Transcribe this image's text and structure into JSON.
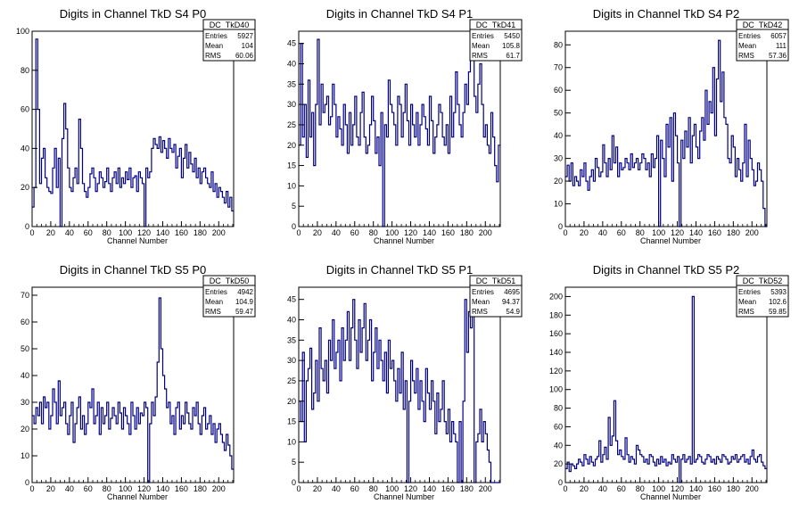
{
  "canvas": {
    "background": "#ffffff",
    "line_color": "#000080"
  },
  "chart_data": [
    {
      "type": "histogram",
      "title": "Digits in Channel TkD S4 P0",
      "xlabel": "Channel Number",
      "ylabel": "",
      "xlim": [
        0,
        216
      ],
      "ylim": [
        0,
        100
      ],
      "xticks": [
        0,
        20,
        40,
        60,
        80,
        100,
        120,
        140,
        160,
        180,
        200
      ],
      "yticks": [
        0,
        20,
        40,
        60,
        80,
        100
      ],
      "stats": {
        "name": "DC_TkD40",
        "entries": "5927",
        "mean": "104",
        "rms": "60.06"
      },
      "bin_width": 2,
      "values": [
        10,
        20,
        96,
        60,
        22,
        35,
        40,
        25,
        20,
        18,
        17,
        30,
        40,
        20,
        35,
        0,
        45,
        63,
        50,
        30,
        20,
        18,
        25,
        30,
        22,
        55,
        40,
        22,
        18,
        15,
        20,
        27,
        30,
        25,
        18,
        22,
        28,
        25,
        20,
        23,
        30,
        22,
        18,
        25,
        28,
        22,
        30,
        20,
        25,
        22,
        28,
        24,
        30,
        20,
        25,
        26,
        18,
        28,
        25,
        22,
        0,
        30,
        25,
        28,
        40,
        45,
        42,
        40,
        46,
        38,
        44,
        40,
        35,
        45,
        40,
        38,
        42,
        30,
        36,
        40,
        25,
        35,
        42,
        30,
        38,
        32,
        28,
        35,
        25,
        30,
        22,
        28,
        30,
        25,
        22,
        20,
        28,
        18,
        22,
        15,
        20,
        18,
        15,
        12,
        18,
        10,
        15,
        8
      ]
    },
    {
      "type": "histogram",
      "title": "Digits in Channel TkD S4 P1",
      "xlabel": "Channel Number",
      "ylabel": "",
      "xlim": [
        0,
        216
      ],
      "ylim": [
        0,
        48
      ],
      "xticks": [
        0,
        20,
        40,
        60,
        80,
        100,
        120,
        140,
        160,
        180,
        200
      ],
      "yticks": [
        0,
        5,
        10,
        15,
        20,
        25,
        30,
        35,
        40,
        45
      ],
      "stats": {
        "name": "DC_TkD41",
        "entries": "5450",
        "mean": "105.8",
        "rms": "61.7"
      },
      "bin_width": 2,
      "values": [
        20,
        45,
        22,
        30,
        17,
        36,
        22,
        28,
        15,
        30,
        46,
        25,
        35,
        28,
        30,
        32,
        25,
        27,
        35,
        30,
        22,
        27,
        24,
        20,
        30,
        25,
        18,
        28,
        20,
        25,
        32,
        22,
        20,
        28,
        33,
        22,
        18,
        20,
        25,
        32,
        26,
        18,
        22,
        15,
        28,
        0,
        25,
        22,
        36,
        30,
        28,
        25,
        20,
        32,
        30,
        22,
        28,
        35,
        26,
        20,
        30,
        25,
        22,
        28,
        20,
        25,
        30,
        27,
        24,
        20,
        32,
        26,
        18,
        22,
        25,
        30,
        28,
        22,
        20,
        25,
        18,
        32,
        22,
        28,
        38,
        30,
        25,
        22,
        28,
        35,
        30,
        38,
        42,
        46,
        32,
        28,
        35,
        40,
        30,
        22,
        25,
        20,
        18,
        28,
        22,
        15,
        11,
        20
      ]
    },
    {
      "type": "histogram",
      "title": "Digits in Channel TkD S4 P2",
      "xlabel": "Channel Number",
      "ylabel": "",
      "xlim": [
        0,
        216
      ],
      "ylim": [
        0,
        86
      ],
      "xticks": [
        0,
        20,
        40,
        60,
        80,
        100,
        120,
        140,
        160,
        180,
        200
      ],
      "yticks": [
        0,
        10,
        20,
        30,
        40,
        50,
        60,
        70,
        80
      ],
      "stats": {
        "name": "DC_TkD42",
        "entries": "6057",
        "mean": "111",
        "rms": "57.36"
      },
      "bin_width": 2,
      "values": [
        22,
        27,
        20,
        28,
        18,
        22,
        20,
        18,
        25,
        22,
        28,
        20,
        16,
        22,
        25,
        20,
        30,
        26,
        22,
        24,
        36,
        28,
        22,
        30,
        25,
        40,
        28,
        35,
        22,
        28,
        25,
        26,
        30,
        28,
        25,
        32,
        26,
        28,
        30,
        25,
        28,
        32,
        30,
        25,
        28,
        22,
        32,
        26,
        30,
        40,
        0,
        38,
        30,
        22,
        45,
        35,
        48,
        20,
        50,
        40,
        28,
        0,
        38,
        30,
        42,
        35,
        48,
        28,
        40,
        45,
        35,
        30,
        42,
        48,
        38,
        60,
        45,
        55,
        50,
        70,
        40,
        65,
        82,
        55,
        68,
        48,
        45,
        30,
        28,
        40,
        35,
        22,
        30,
        25,
        20,
        28,
        45,
        22,
        38,
        30,
        25,
        18,
        20,
        28,
        25,
        20,
        8,
        0
      ]
    },
    {
      "type": "histogram",
      "title": "Digits in Channel TkD S5 P0",
      "xlabel": "Channel Number",
      "ylabel": "",
      "xlim": [
        0,
        216
      ],
      "ylim": [
        0,
        73
      ],
      "xticks": [
        0,
        20,
        40,
        60,
        80,
        100,
        120,
        140,
        160,
        180,
        200
      ],
      "yticks": [
        0,
        10,
        20,
        30,
        40,
        50,
        60,
        70
      ],
      "stats": {
        "name": "DC_TkD50",
        "entries": "4942",
        "mean": "104.9",
        "rms": "59.47"
      },
      "bin_width": 2,
      "values": [
        25,
        22,
        28,
        25,
        30,
        22,
        32,
        28,
        30,
        20,
        25,
        35,
        30,
        22,
        38,
        25,
        28,
        30,
        22,
        18,
        25,
        30,
        15,
        22,
        28,
        32,
        20,
        25,
        18,
        22,
        30,
        28,
        35,
        22,
        25,
        30,
        18,
        28,
        22,
        25,
        30,
        20,
        24,
        28,
        25,
        22,
        30,
        26,
        20,
        28,
        25,
        22,
        18,
        30,
        25,
        20,
        28,
        22,
        26,
        25,
        30,
        28,
        0,
        22,
        30,
        25,
        32,
        45,
        69,
        50,
        40,
        35,
        28,
        30,
        22,
        25,
        18,
        28,
        30,
        20,
        25,
        22,
        30,
        26,
        22,
        20,
        28,
        25,
        30,
        22,
        18,
        25,
        28,
        20,
        22,
        25,
        18,
        22,
        15,
        20,
        22,
        18,
        15,
        12,
        18,
        14,
        10,
        5
      ]
    },
    {
      "type": "histogram",
      "title": "Digits in Channel TkD S5 P1",
      "xlabel": "Channel Number",
      "ylabel": "",
      "xlim": [
        0,
        216
      ],
      "ylim": [
        0,
        48
      ],
      "xticks": [
        0,
        20,
        40,
        60,
        80,
        100,
        120,
        140,
        160,
        180,
        200
      ],
      "yticks": [
        0,
        5,
        10,
        15,
        20,
        25,
        30,
        35,
        40,
        45
      ],
      "stats": {
        "name": "DC_TkD51",
        "entries": "4695",
        "mean": "94.37",
        "rms": "54.9"
      },
      "bin_width": 2,
      "values": [
        20,
        15,
        32,
        10,
        25,
        28,
        33,
        18,
        22,
        30,
        20,
        38,
        28,
        25,
        30,
        22,
        35,
        30,
        40,
        28,
        32,
        35,
        25,
        38,
        30,
        35,
        42,
        30,
        38,
        45,
        35,
        28,
        40,
        32,
        38,
        44,
        30,
        35,
        40,
        25,
        32,
        38,
        28,
        35,
        30,
        25,
        32,
        22,
        35,
        28,
        30,
        25,
        20,
        28,
        22,
        32,
        18,
        25,
        0,
        20,
        30,
        25,
        22,
        28,
        18,
        25,
        20,
        15,
        28,
        22,
        18,
        25,
        20,
        12,
        22,
        15,
        18,
        25,
        15,
        12,
        18,
        10,
        15,
        12,
        10,
        0,
        15,
        0,
        20,
        45,
        32,
        42,
        38,
        45,
        0,
        10,
        12,
        18,
        10,
        15,
        12,
        8,
        5,
        0,
        0,
        0,
        0,
        0
      ]
    },
    {
      "type": "histogram",
      "title": "Digits in Channel TkD S5 P2",
      "xlabel": "Channel Number",
      "ylabel": "",
      "xlim": [
        0,
        216
      ],
      "ylim": [
        0,
        210
      ],
      "xticks": [
        0,
        20,
        40,
        60,
        80,
        100,
        120,
        140,
        160,
        180,
        200
      ],
      "yticks": [
        0,
        20,
        40,
        60,
        80,
        100,
        120,
        140,
        160,
        180,
        200
      ],
      "stats": {
        "name": "DC_TkD52",
        "entries": "5393",
        "mean": "102.6",
        "rms": "59.85"
      },
      "bin_width": 2,
      "values": [
        15,
        22,
        12,
        20,
        18,
        15,
        20,
        25,
        22,
        18,
        30,
        25,
        20,
        28,
        22,
        18,
        25,
        28,
        45,
        22,
        30,
        38,
        25,
        70,
        40,
        50,
        88,
        45,
        30,
        35,
        28,
        25,
        48,
        30,
        22,
        28,
        25,
        20,
        40,
        35,
        30,
        28,
        22,
        25,
        20,
        30,
        28,
        22,
        18,
        25,
        20,
        28,
        22,
        25,
        18,
        22,
        20,
        30,
        25,
        22,
        28,
        0,
        25,
        30,
        22,
        25,
        28,
        20,
        200,
        22,
        25,
        30,
        28,
        22,
        20,
        25,
        30,
        28,
        22,
        25,
        20,
        28,
        25,
        22,
        30,
        28,
        25,
        20,
        22,
        28,
        25,
        30,
        22,
        25,
        28,
        30,
        22,
        25,
        20,
        28,
        35,
        25,
        22,
        28,
        30,
        22,
        18,
        15
      ]
    }
  ]
}
